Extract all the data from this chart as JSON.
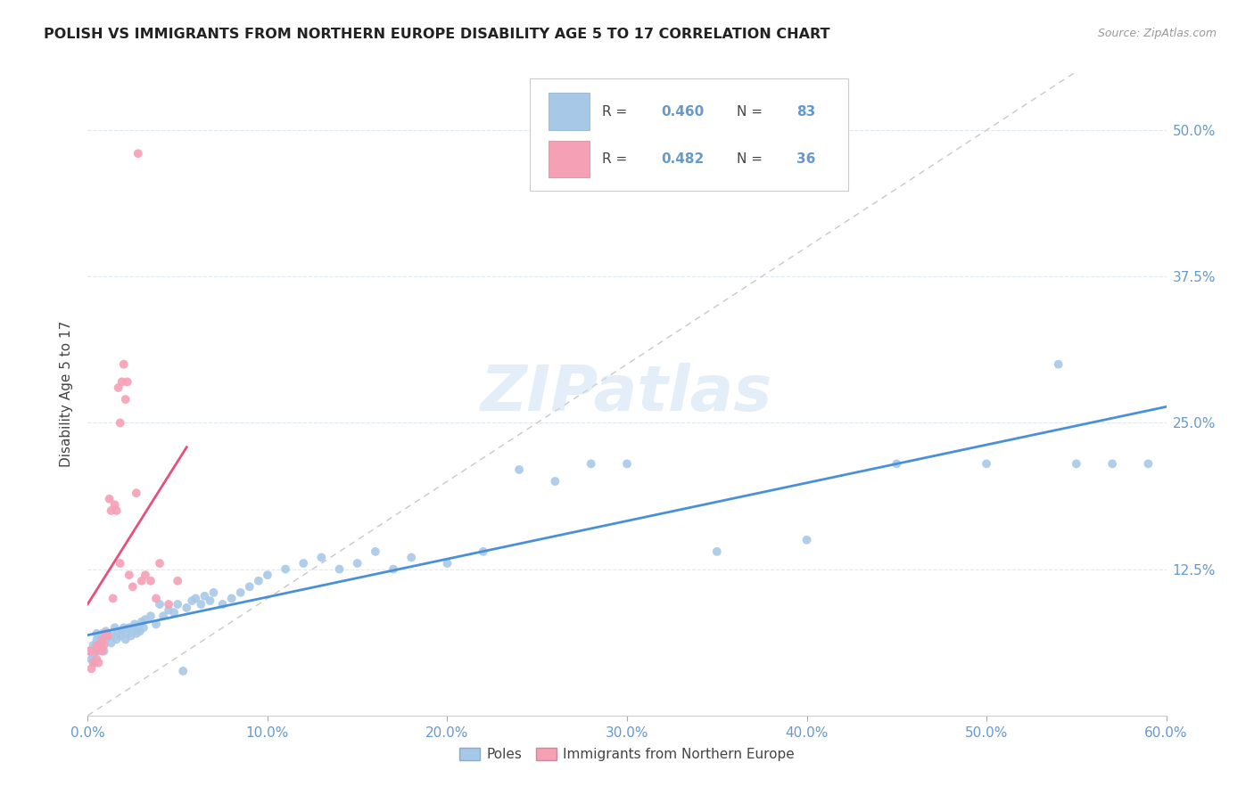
{
  "title": "POLISH VS IMMIGRANTS FROM NORTHERN EUROPE DISABILITY AGE 5 TO 17 CORRELATION CHART",
  "source": "Source: ZipAtlas.com",
  "ylabel": "Disability Age 5 to 17",
  "xlim": [
    0.0,
    0.6
  ],
  "ylim": [
    0.0,
    0.55
  ],
  "poles_R": 0.46,
  "poles_N": 83,
  "immigrants_R": 0.482,
  "immigrants_N": 36,
  "poles_color": "#a8c8e8",
  "immigrants_color": "#f5a0b5",
  "poles_line_color": "#4a90d9",
  "immigrants_line_color": "#e8507a",
  "diagonal_color": "#c8c8c8",
  "background_color": "#ffffff",
  "grid_color": "#e0e8f0",
  "tick_color": "#6699cc",
  "ytick_values": [
    0.125,
    0.25,
    0.375,
    0.5
  ],
  "ytick_labels": [
    "12.5%",
    "25.0%",
    "37.5%",
    "50.0%"
  ],
  "xtick_values": [
    0.0,
    0.1,
    0.2,
    0.3,
    0.4,
    0.5,
    0.6
  ],
  "xtick_labels": [
    "0.0%",
    "10.0%",
    "20.0%",
    "30.0%",
    "40.0%",
    "50.0%",
    "60.0%"
  ],
  "poles_x": [
    0.001,
    0.002,
    0.003,
    0.003,
    0.004,
    0.004,
    0.005,
    0.005,
    0.006,
    0.006,
    0.007,
    0.007,
    0.008,
    0.008,
    0.009,
    0.009,
    0.01,
    0.01,
    0.011,
    0.012,
    0.013,
    0.014,
    0.015,
    0.016,
    0.017,
    0.018,
    0.019,
    0.02,
    0.021,
    0.022,
    0.023,
    0.024,
    0.025,
    0.026,
    0.027,
    0.028,
    0.029,
    0.03,
    0.031,
    0.032,
    0.035,
    0.038,
    0.04,
    0.042,
    0.045,
    0.048,
    0.05,
    0.053,
    0.055,
    0.058,
    0.06,
    0.063,
    0.065,
    0.068,
    0.07,
    0.075,
    0.08,
    0.085,
    0.09,
    0.095,
    0.1,
    0.11,
    0.12,
    0.13,
    0.14,
    0.15,
    0.16,
    0.17,
    0.18,
    0.2,
    0.22,
    0.24,
    0.26,
    0.28,
    0.3,
    0.35,
    0.4,
    0.45,
    0.5,
    0.54,
    0.55,
    0.57,
    0.59
  ],
  "poles_y": [
    0.055,
    0.048,
    0.06,
    0.052,
    0.058,
    0.045,
    0.065,
    0.07,
    0.06,
    0.055,
    0.065,
    0.058,
    0.07,
    0.062,
    0.068,
    0.055,
    0.072,
    0.065,
    0.07,
    0.068,
    0.062,
    0.068,
    0.075,
    0.065,
    0.07,
    0.068,
    0.072,
    0.075,
    0.065,
    0.07,
    0.075,
    0.068,
    0.072,
    0.078,
    0.07,
    0.075,
    0.072,
    0.08,
    0.075,
    0.082,
    0.085,
    0.078,
    0.095,
    0.085,
    0.09,
    0.088,
    0.095,
    0.038,
    0.092,
    0.098,
    0.1,
    0.095,
    0.102,
    0.098,
    0.105,
    0.095,
    0.1,
    0.105,
    0.11,
    0.115,
    0.12,
    0.125,
    0.13,
    0.135,
    0.125,
    0.13,
    0.14,
    0.125,
    0.135,
    0.13,
    0.14,
    0.21,
    0.2,
    0.215,
    0.215,
    0.14,
    0.15,
    0.215,
    0.215,
    0.3,
    0.215,
    0.215,
    0.215
  ],
  "immigrants_x": [
    0.001,
    0.002,
    0.003,
    0.004,
    0.005,
    0.005,
    0.006,
    0.007,
    0.008,
    0.008,
    0.009,
    0.01,
    0.011,
    0.012,
    0.013,
    0.014,
    0.015,
    0.016,
    0.017,
    0.018,
    0.018,
    0.019,
    0.02,
    0.021,
    0.022,
    0.023,
    0.025,
    0.027,
    0.028,
    0.03,
    0.032,
    0.035,
    0.038,
    0.04,
    0.045,
    0.05
  ],
  "immigrants_y": [
    0.055,
    0.04,
    0.045,
    0.055,
    0.06,
    0.048,
    0.045,
    0.058,
    0.055,
    0.065,
    0.06,
    0.07,
    0.068,
    0.185,
    0.175,
    0.1,
    0.18,
    0.175,
    0.28,
    0.25,
    0.13,
    0.285,
    0.3,
    0.27,
    0.285,
    0.12,
    0.11,
    0.19,
    0.48,
    0.115,
    0.12,
    0.115,
    0.1,
    0.13,
    0.095,
    0.115
  ]
}
